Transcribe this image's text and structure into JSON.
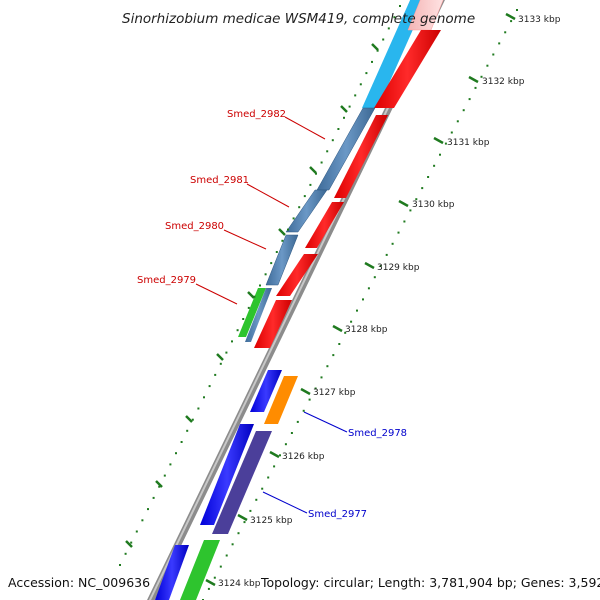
{
  "title": "Sinorhizobium medicae WSM419, complete genome",
  "footer": {
    "accession": "Accession: NC_009636",
    "summary": "Topology: circular; Length: 3,781,904 bp; Genes: 3,592"
  },
  "colors": {
    "label_plus_strand": "#cc0000",
    "label_minus_strand": "#0000cc",
    "tick": "#1f7a1f",
    "backbone": "#8c8c8c"
  },
  "kbp_ticks": [
    {
      "label": "3124 kbp"
    },
    {
      "label": "3125 kbp"
    },
    {
      "label": "3126 kbp"
    },
    {
      "label": "3127 kbp"
    },
    {
      "label": "3128 kbp"
    },
    {
      "label": "3129 kbp"
    },
    {
      "label": "3130 kbp"
    },
    {
      "label": "3131 kbp"
    },
    {
      "label": "3132 kbp"
    },
    {
      "label": "3133 kbp"
    }
  ],
  "gene_labels": [
    {
      "text": "Smed_2982",
      "strand": "plus"
    },
    {
      "text": "Smed_2981",
      "strand": "plus"
    },
    {
      "text": "Smed_2980",
      "strand": "plus"
    },
    {
      "text": "Smed_2979",
      "strand": "plus"
    },
    {
      "text": "Smed_2978",
      "strand": "minus"
    },
    {
      "text": "Smed_2977",
      "strand": "minus"
    }
  ]
}
